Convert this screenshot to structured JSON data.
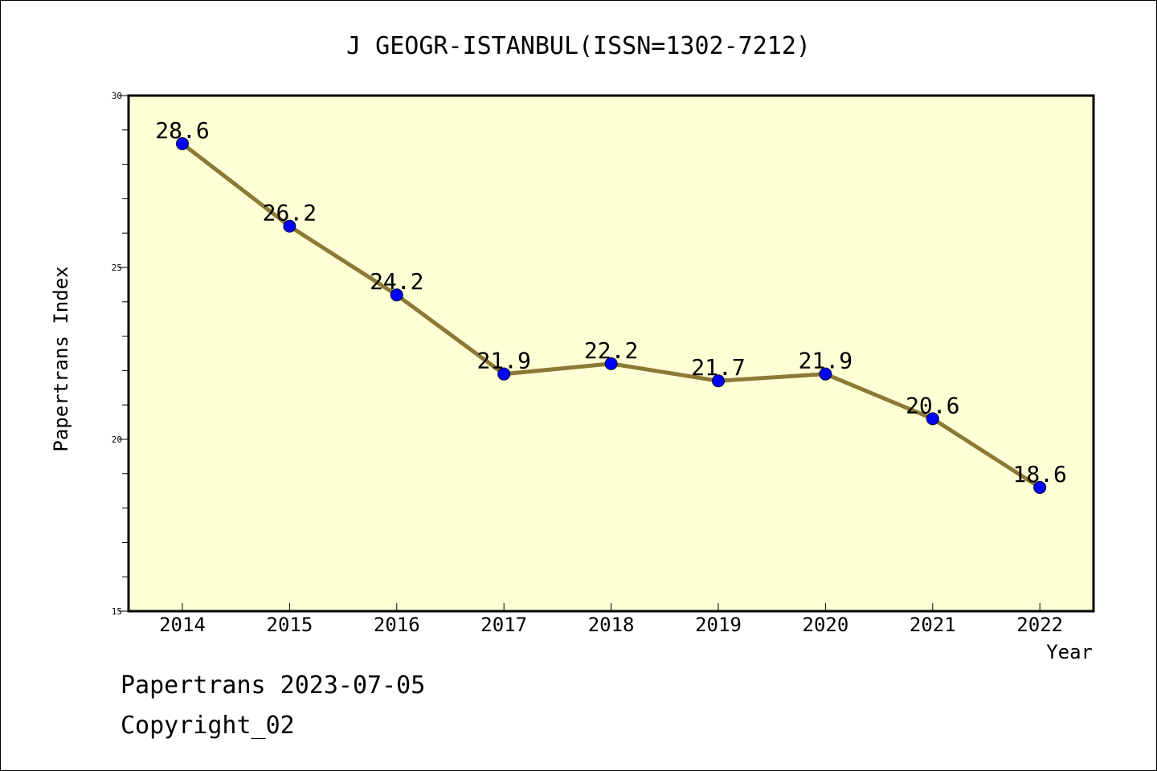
{
  "footer": {
    "line1": "Papertrans 2023-07-05",
    "line2": "Copyright_02"
  },
  "colors": {
    "plot_background": "#ffffd5",
    "line": "#8b7a35",
    "marker": "#0000ff",
    "axis": "#000000"
  },
  "chart_data": {
    "type": "line",
    "title": "J GEOGR-ISTANBUL(ISSN=1302-7212)",
    "xlabel": "Year",
    "ylabel": "Papertrans Index",
    "categories": [
      "2014",
      "2015",
      "2016",
      "2017",
      "2018",
      "2019",
      "2020",
      "2021",
      "2022"
    ],
    "series": [
      {
        "values": [
          28.6,
          26.2,
          24.2,
          21.9,
          22.2,
          21.7,
          21.9,
          20.6,
          18.6
        ],
        "labels": [
          "28.6",
          "26.2",
          "24.2",
          "21.9",
          "22.2",
          "21.7",
          "21.9",
          "20.6",
          "18.6"
        ]
      }
    ],
    "ylim": [
      15,
      30
    ],
    "yticks": [
      "15",
      "20",
      "25",
      "30"
    ],
    "grid": false,
    "legend": "none"
  }
}
